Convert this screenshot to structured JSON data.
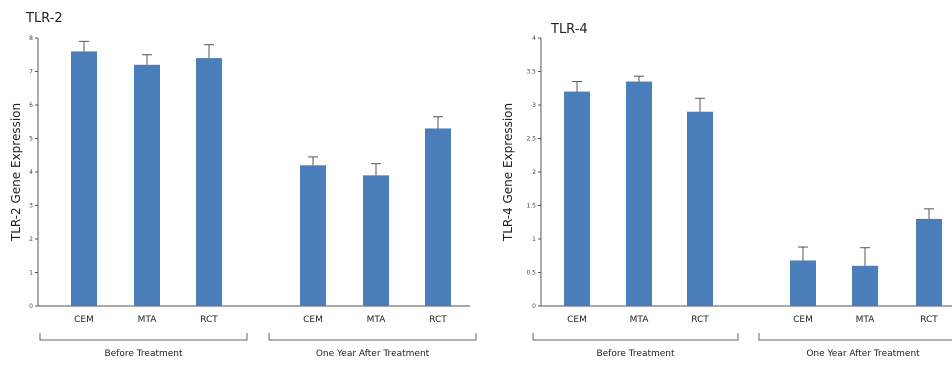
{
  "chart_data": [
    {
      "type": "bar",
      "title": "TLR-2",
      "ylabel": "TLR-2 Gene Expression",
      "ylim": [
        0,
        8
      ],
      "yticks": [
        0,
        1,
        2,
        3,
        4,
        5,
        6,
        7,
        8
      ],
      "categories": [
        "CEM",
        "MTA",
        "RCT",
        "CEM",
        "MTA",
        "RCT"
      ],
      "groups": [
        {
          "label": "Before Treatment",
          "start": 0,
          "end": 2
        },
        {
          "label": "One Year After Treatment",
          "start": 3,
          "end": 5
        }
      ],
      "values": [
        7.6,
        7.2,
        7.4,
        4.2,
        3.9,
        5.3
      ],
      "errors": [
        0.3,
        0.3,
        0.4,
        0.25,
        0.35,
        0.35
      ],
      "bar_color": "#4a7ebb",
      "grid": false
    },
    {
      "type": "bar",
      "title": "TLR-4",
      "ylabel": "TLR-4 Gene Expression",
      "ylim": [
        0,
        4
      ],
      "yticks": [
        0,
        0.5,
        1,
        1.5,
        2,
        2.5,
        3,
        3.5,
        4
      ],
      "categories": [
        "CEM",
        "MTA",
        "RCT",
        "CEM",
        "MTA",
        "RCT"
      ],
      "groups": [
        {
          "label": "Before Treatment",
          "start": 0,
          "end": 2
        },
        {
          "label": "One Year After Treatment",
          "start": 3,
          "end": 5
        }
      ],
      "values": [
        3.2,
        3.35,
        2.9,
        0.68,
        0.6,
        1.3
      ],
      "errors": [
        0.15,
        0.08,
        0.2,
        0.2,
        0.27,
        0.15
      ],
      "bar_color": "#4a7ebb",
      "grid": false
    }
  ]
}
